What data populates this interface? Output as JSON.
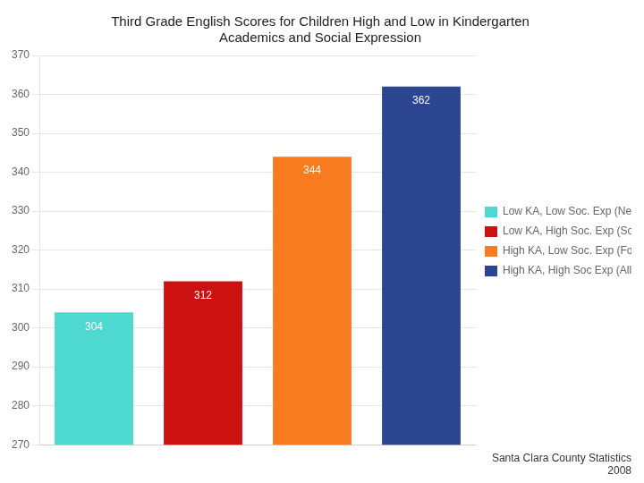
{
  "chart_data": {
    "type": "bar",
    "title": "Third Grade English Scores for Children High and Low in Kindergarten\nAcademics and Social Expression",
    "categories": [
      null,
      null,
      null,
      null
    ],
    "series": [
      {
        "name": "Low KA, Low Soc. Exp (Needs Prep)",
        "color": "#4DD9CF",
        "values": [
          304,
          null,
          null,
          null
        ]
      },
      {
        "name": "Low KA, High Soc. Exp (Social Stars)",
        "color": "#CC1111",
        "values": [
          null,
          312,
          null,
          null
        ]
      },
      {
        "name": "High KA, Low Soc. Exp (Focused on the Facts)",
        "color": "#F97B20",
        "values": [
          null,
          null,
          344,
          null
        ]
      },
      {
        "name": "High KA, High Soc Exp (All Stars)",
        "color": "#2B4590",
        "values": [
          null,
          null,
          null,
          362
        ]
      }
    ],
    "ylim": [
      270,
      370
    ],
    "yticks": [
      270,
      280,
      290,
      300,
      310,
      320,
      330,
      340,
      350,
      360,
      370
    ],
    "grid": true,
    "legend": "right",
    "data_labels": true,
    "tick_labels": "y",
    "annotations": [
      "Santa Clara County Statistics\n2008"
    ]
  }
}
